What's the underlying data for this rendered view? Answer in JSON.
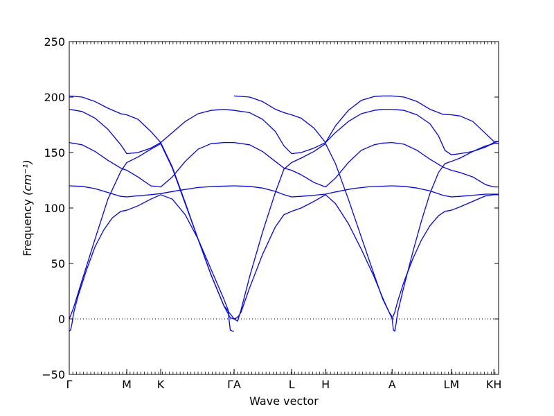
{
  "chart_data": {
    "type": "line",
    "title": "",
    "xlabel": "Wave vector",
    "ylabel_text": "Frequency ",
    "ylabel_unit": "(cm⁻¹)",
    "ylim": [
      -50,
      250
    ],
    "yticks": [
      -50,
      0,
      50,
      100,
      150,
      200,
      250
    ],
    "ytick_labels": [
      "−50",
      "0",
      "50",
      "100",
      "150",
      "200",
      "250"
    ],
    "xlim": [
      0,
      1
    ],
    "high_symmetry_points": [
      {
        "label": "Γ",
        "x": 0.0
      },
      {
        "label": "M",
        "x": 0.134
      },
      {
        "label": "K",
        "x": 0.213
      },
      {
        "label": "ΓA",
        "x": 0.384
      },
      {
        "label": "L",
        "x": 0.518
      },
      {
        "label": "H",
        "x": 0.597
      },
      {
        "label": "A",
        "x": 0.752
      },
      {
        "label": "LM",
        "x": 0.89
      },
      {
        "label": "KH",
        "x": 0.989
      }
    ],
    "zero_line": {
      "y": 0,
      "style": "dotted"
    },
    "line_color": "#0000ff",
    "series": [
      {
        "x": [
          0,
          0.003,
          0.006,
          0.01,
          0.02,
          0.04,
          0.06,
          0.08,
          0.1,
          0.12,
          0.134,
          0.16,
          0.19,
          0.213,
          0.24,
          0.27,
          0.3,
          0.33,
          0.36,
          0.37,
          0.372,
          0.375,
          0.38,
          0.384
        ],
        "values": [
          -11,
          -10,
          -5,
          5,
          20,
          44,
          65,
          80,
          91,
          97,
          98,
          102,
          108,
          112,
          108,
          94,
          72,
          45,
          18,
          8,
          0,
          -10,
          -11,
          -11
        ]
      },
      {
        "x": [
          0,
          0.01,
          0.03,
          0.06,
          0.09,
          0.12,
          0.134,
          0.16,
          0.19,
          0.213,
          0.24,
          0.27,
          0.3,
          0.33,
          0.36,
          0.375,
          0.384
        ],
        "values": [
          0,
          10,
          35,
          72,
          108,
          133,
          141,
          146,
          153,
          158,
          136,
          104,
          72,
          40,
          12,
          1,
          0
        ]
      },
      {
        "x": [
          0,
          0.03,
          0.06,
          0.09,
          0.12,
          0.134,
          0.16,
          0.19,
          0.213,
          0.25,
          0.3,
          0.34,
          0.384
        ],
        "values": [
          120,
          119.5,
          117.5,
          114,
          110.5,
          110,
          111,
          112,
          113,
          115.5,
          118.5,
          119.5,
          120
        ]
      },
      {
        "x": [
          0,
          0.03,
          0.06,
          0.09,
          0.12,
          0.134,
          0.16,
          0.19,
          0.213,
          0.24,
          0.27,
          0.3,
          0.33,
          0.36,
          0.384
        ],
        "values": [
          159,
          157,
          151,
          143,
          136,
          134,
          128,
          120,
          119,
          128,
          142,
          153,
          158,
          159,
          159
        ]
      },
      {
        "x": [
          0,
          0.03,
          0.06,
          0.09,
          0.12,
          0.134,
          0.16,
          0.19,
          0.213,
          0.24,
          0.27,
          0.3,
          0.33,
          0.36,
          0.384
        ],
        "values": [
          189,
          187,
          181,
          171,
          157,
          149,
          150,
          154,
          159,
          168,
          178,
          185,
          188,
          189,
          188
        ]
      },
      {
        "x": [
          0,
          0.03,
          0.06,
          0.09,
          0.12,
          0.134,
          0.16,
          0.19,
          0.213,
          0.24,
          0.27,
          0.3,
          0.33,
          0.36,
          0.384
        ],
        "values": [
          201,
          200,
          196,
          190,
          185,
          184,
          180,
          169,
          159,
          137,
          105,
          72,
          40,
          12,
          0
        ]
      },
      {
        "x": [
          0.384,
          0.39,
          0.395,
          0.4,
          0.42,
          0.45,
          0.48,
          0.5,
          0.518,
          0.54,
          0.57,
          0.597,
          0.62,
          0.65,
          0.68,
          0.71,
          0.73,
          0.745,
          0.75,
          0.752
        ],
        "values": [
          0,
          1,
          3,
          6,
          28,
          58,
          83,
          94,
          97,
          100,
          106,
          112,
          104,
          86,
          63,
          38,
          19,
          6,
          2,
          0
        ]
      },
      {
        "x": [
          0.384,
          0.392,
          0.4,
          0.42,
          0.45,
          0.48,
          0.5,
          0.518,
          0.54,
          0.57,
          0.597,
          0.62,
          0.65,
          0.68,
          0.71,
          0.73,
          0.745,
          0.752
        ],
        "values": [
          0,
          -2,
          8,
          38,
          78,
          114,
          135,
          141,
          145,
          151,
          158,
          140,
          108,
          74,
          40,
          18,
          6,
          2
        ]
      },
      {
        "x": [
          0.384,
          0.42,
          0.45,
          0.48,
          0.5,
          0.518,
          0.54,
          0.57,
          0.597,
          0.62,
          0.66,
          0.7,
          0.752
        ],
        "values": [
          120,
          119.5,
          118,
          115,
          112,
          110,
          110.5,
          111.5,
          112.5,
          114.5,
          117.5,
          119.2,
          120
        ]
      },
      {
        "x": [
          0.384,
          0.42,
          0.45,
          0.48,
          0.5,
          0.518,
          0.54,
          0.57,
          0.597,
          0.62,
          0.65,
          0.68,
          0.71,
          0.73,
          0.752
        ],
        "values": [
          159,
          157,
          151,
          142,
          136,
          134,
          130,
          123,
          119,
          127,
          141,
          152,
          157,
          158.5,
          159
        ]
      },
      {
        "x": [
          0.384,
          0.42,
          0.45,
          0.48,
          0.5,
          0.518,
          0.54,
          0.57,
          0.597,
          0.62,
          0.65,
          0.68,
          0.71,
          0.73,
          0.752
        ],
        "values": [
          188,
          186,
          180,
          169,
          156,
          149,
          150,
          154,
          159,
          168,
          178,
          185,
          188,
          189,
          189
        ]
      },
      {
        "x": [
          0.384,
          0.42,
          0.45,
          0.48,
          0.5,
          0.518,
          0.54,
          0.57,
          0.597,
          0.62,
          0.65,
          0.68,
          0.71,
          0.73,
          0.752
        ],
        "values": [
          201,
          200,
          196,
          189,
          186,
          184,
          181,
          172,
          159,
          174,
          188,
          197,
          200.5,
          201,
          201
        ]
      },
      {
        "x": [
          0.752,
          0.758,
          0.765,
          0.78,
          0.8,
          0.82,
          0.84,
          0.86,
          0.875,
          0.89,
          0.91,
          0.94,
          0.97,
          0.989,
          1.0
        ],
        "values": [
          0,
          6,
          16,
          34,
          54,
          71,
          84,
          93,
          97,
          98,
          101,
          106,
          111,
          112,
          112
        ]
      },
      {
        "x": [
          0.752,
          0.755,
          0.758,
          0.761,
          0.765,
          0.78,
          0.8,
          0.82,
          0.84,
          0.86,
          0.875,
          0.89,
          0.91,
          0.94,
          0.97,
          0.989,
          1.0
        ],
        "values": [
          0,
          -10,
          -11,
          -5,
          6,
          30,
          60,
          88,
          113,
          132,
          140,
          142,
          145,
          151,
          156,
          158,
          158
        ]
      },
      {
        "x": [
          0.752,
          0.78,
          0.81,
          0.84,
          0.87,
          0.89,
          0.91,
          0.94,
          0.97,
          0.989,
          1.0
        ],
        "values": [
          120,
          119.5,
          118,
          115.5,
          111.5,
          110,
          110.5,
          111.5,
          112.5,
          112.5,
          112.5
        ]
      },
      {
        "x": [
          0.752,
          0.78,
          0.81,
          0.84,
          0.87,
          0.89,
          0.91,
          0.94,
          0.97,
          0.989,
          1.0
        ],
        "values": [
          159,
          157.5,
          152,
          144,
          137,
          134,
          132,
          128,
          121,
          119,
          119
        ]
      },
      {
        "x": [
          0.752,
          0.78,
          0.81,
          0.84,
          0.86,
          0.875,
          0.89,
          0.91,
          0.94,
          0.97,
          0.989,
          1.0
        ],
        "values": [
          189,
          188,
          184,
          176,
          165,
          152,
          148,
          149,
          151,
          155,
          159,
          160
        ]
      },
      {
        "x": [
          0.752,
          0.78,
          0.81,
          0.84,
          0.87,
          0.89,
          0.91,
          0.94,
          0.97,
          0.989,
          1.0
        ],
        "values": [
          201,
          200,
          196,
          189,
          184.5,
          184,
          183,
          178,
          167,
          160,
          160
        ]
      }
    ]
  }
}
